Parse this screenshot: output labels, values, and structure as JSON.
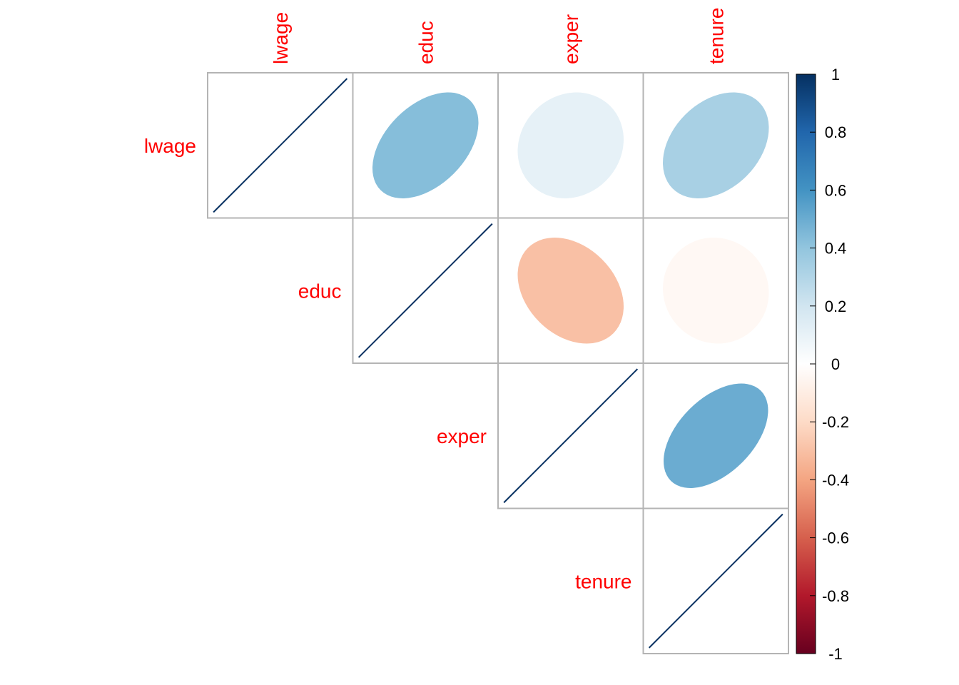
{
  "chart_data": {
    "type": "heatmap",
    "variables": [
      "lwage",
      "educ",
      "exper",
      "tenure"
    ],
    "matrix": [
      [
        1.0,
        0.43,
        0.11,
        0.33
      ],
      [
        0.43,
        1.0,
        -0.3,
        -0.04
      ],
      [
        0.11,
        -0.3,
        1.0,
        0.5
      ],
      [
        0.33,
        -0.04,
        0.5,
        1.0
      ]
    ],
    "display": "upper triangle, ellipse glyphs",
    "colorbar": {
      "range": [
        -1,
        1
      ],
      "ticks": [
        "1",
        "0.8",
        "0.6",
        "0.4",
        "0.2",
        "0",
        "-0.2",
        "-0.4",
        "-0.6",
        "-0.8",
        "-1"
      ],
      "colors": [
        "#67001F",
        "#B2182B",
        "#D6604D",
        "#F4A582",
        "#FDDBC7",
        "#FFFFFF",
        "#D1E5F0",
        "#92C5DE",
        "#4393C3",
        "#2166AC",
        "#053061"
      ]
    },
    "label_color": "#FF0000",
    "grid_color": "#B4B4B4"
  }
}
